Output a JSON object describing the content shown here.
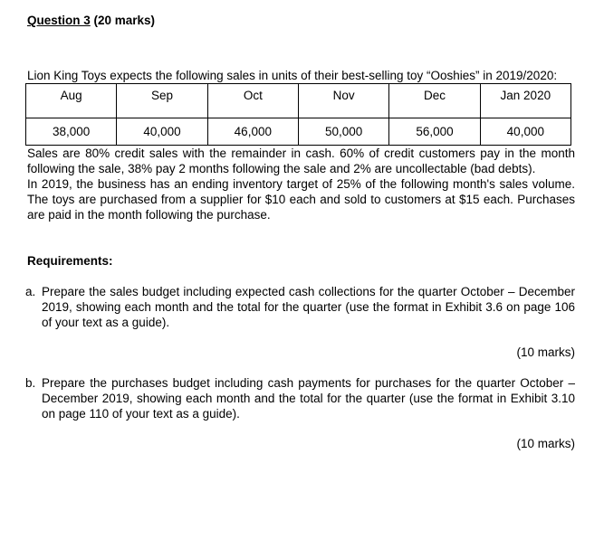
{
  "doc": {
    "heading": {
      "title": "Question 3",
      "marks": " (20 marks)"
    },
    "intro": "Lion King Toys expects the following sales in units of their best-selling toy “Ooshies” in 2019/2020:",
    "sales_table": {
      "headers": [
        "Aug",
        "Sep",
        "Oct",
        "Nov",
        "Dec",
        "Jan 2020"
      ],
      "values": [
        "38,000",
        "40,000",
        "46,000",
        "50,000",
        "56,000",
        "40,000"
      ]
    },
    "para_sales": "Sales are 80% credit sales with the remainder in cash.  60% of credit customers pay in the month following the sale, 38% pay 2 months following the sale and 2% are uncollectable (bad debts).",
    "para_inventory": "In 2019, the business has an ending inventory target of 25% of the following month's sales volume.  The toys are purchased from a supplier for $10 each and sold to customers at $15 each.  Purchases are paid in the month following the purchase.",
    "requirements_label": "Requirements:",
    "requirements": [
      {
        "letter": "a.",
        "text": "Prepare the sales budget including expected cash collections for the quarter October – December 2019, showing each month and the total for the quarter (use the format in Exhibit 3.6 on page 106 of your text as a guide).",
        "marks": "(10 marks)"
      },
      {
        "letter": "b.",
        "text": "Prepare the purchases budget including cash payments for purchases for the quarter October – December 2019, showing each month and the total for the quarter (use the format in Exhibit 3.10 on page 110 of your text as a guide).",
        "marks": "(10 marks)"
      }
    ]
  }
}
